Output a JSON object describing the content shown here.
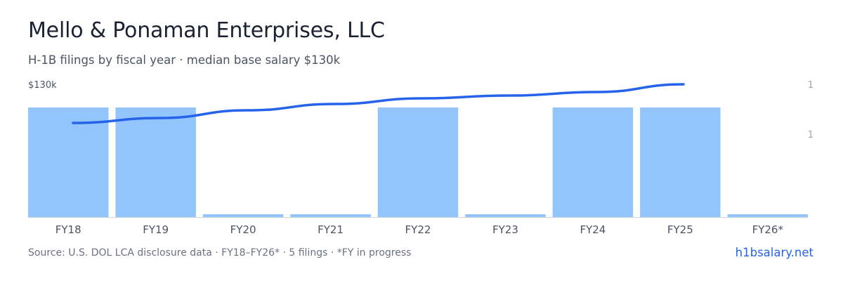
{
  "header": {
    "title": "Mello & Ponaman Enterprises, LLC",
    "subtitle": "H-1B filings by fiscal year · median base salary $130k"
  },
  "footer": {
    "source": "Source: U.S. DOL LCA disclosure data · FY18–FY26* · 5 filings · *FY in progress",
    "brand": "h1bsalary.net"
  },
  "colors": {
    "bar": "#93c5fd",
    "line": "#2563eb",
    "axis_text": "#4b5463",
    "right_axis_text": "#9ca3af",
    "baseline": "#d1d5db"
  },
  "chart_data": {
    "type": "bar",
    "categories": [
      "FY18",
      "FY19",
      "FY20",
      "FY21",
      "FY22",
      "FY23",
      "FY24",
      "FY25",
      "FY26*"
    ],
    "series": [
      {
        "type": "bar",
        "axis": "right",
        "values": [
          1,
          1,
          0,
          0,
          1,
          0,
          1,
          1,
          0
        ]
      },
      {
        "type": "line",
        "axis": "left",
        "values": [
          null,
          1,
          null,
          null,
          1,
          null,
          1,
          1,
          null
        ]
      }
    ],
    "left_axis": {
      "tick_label": "$130k"
    },
    "right_axis": {
      "tick_labels": [
        "1",
        "1"
      ]
    },
    "grid": false,
    "legend": "none"
  }
}
